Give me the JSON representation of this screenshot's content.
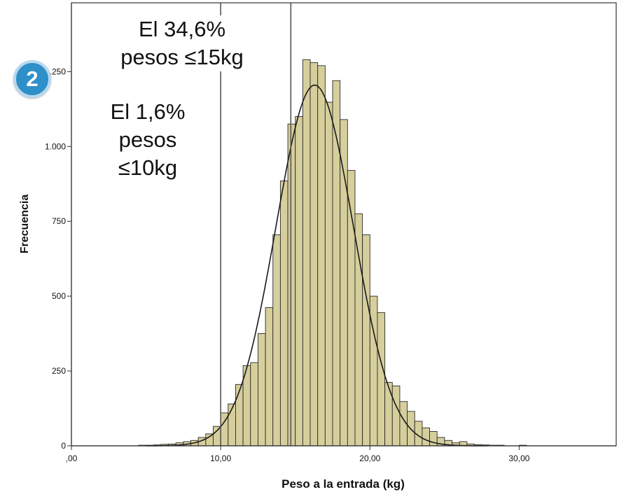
{
  "chart_data": {
    "type": "bar",
    "title": "",
    "xlabel": "Peso a la entrada (kg)",
    "ylabel": "Frecuencia",
    "xlim": [
      0,
      36.5
    ],
    "ylim": [
      0,
      1480
    ],
    "grid": false,
    "x_ticks": [
      0,
      10,
      20,
      30
    ],
    "x_tick_labels": [
      ",00",
      "10,00",
      "20,00",
      "30,00"
    ],
    "y_ticks": [
      0,
      250,
      500,
      750,
      1000,
      1250
    ],
    "y_tick_labels": [
      "0",
      "250",
      "500",
      "750",
      "1.000",
      "1.250"
    ],
    "bin_width": 0.5,
    "bins": [
      {
        "x0": 4.5,
        "value": 2
      },
      {
        "x0": 5.0,
        "value": 2
      },
      {
        "x0": 5.5,
        "value": 3
      },
      {
        "x0": 6.0,
        "value": 5
      },
      {
        "x0": 6.5,
        "value": 6
      },
      {
        "x0": 7.0,
        "value": 10
      },
      {
        "x0": 7.5,
        "value": 14
      },
      {
        "x0": 8.0,
        "value": 18
      },
      {
        "x0": 8.5,
        "value": 28
      },
      {
        "x0": 9.0,
        "value": 40
      },
      {
        "x0": 9.5,
        "value": 65
      },
      {
        "x0": 10.0,
        "value": 110
      },
      {
        "x0": 10.5,
        "value": 140
      },
      {
        "x0": 11.0,
        "value": 205
      },
      {
        "x0": 11.5,
        "value": 268
      },
      {
        "x0": 12.0,
        "value": 278
      },
      {
        "x0": 12.5,
        "value": 375
      },
      {
        "x0": 13.0,
        "value": 462
      },
      {
        "x0": 13.5,
        "value": 705
      },
      {
        "x0": 14.0,
        "value": 885
      },
      {
        "x0": 14.5,
        "value": 1075
      },
      {
        "x0": 15.0,
        "value": 1100
      },
      {
        "x0": 15.5,
        "value": 1290
      },
      {
        "x0": 16.0,
        "value": 1280
      },
      {
        "x0": 16.5,
        "value": 1270
      },
      {
        "x0": 17.0,
        "value": 1148
      },
      {
        "x0": 17.5,
        "value": 1220
      },
      {
        "x0": 18.0,
        "value": 1090
      },
      {
        "x0": 18.5,
        "value": 920
      },
      {
        "x0": 19.0,
        "value": 775
      },
      {
        "x0": 19.5,
        "value": 705
      },
      {
        "x0": 20.0,
        "value": 500
      },
      {
        "x0": 20.5,
        "value": 445
      },
      {
        "x0": 21.0,
        "value": 212
      },
      {
        "x0": 21.5,
        "value": 200
      },
      {
        "x0": 22.0,
        "value": 148
      },
      {
        "x0": 22.5,
        "value": 115
      },
      {
        "x0": 23.0,
        "value": 82
      },
      {
        "x0": 23.5,
        "value": 60
      },
      {
        "x0": 24.0,
        "value": 48
      },
      {
        "x0": 24.5,
        "value": 28
      },
      {
        "x0": 25.0,
        "value": 18
      },
      {
        "x0": 25.5,
        "value": 10
      },
      {
        "x0": 26.0,
        "value": 14
      },
      {
        "x0": 26.5,
        "value": 6
      },
      {
        "x0": 27.0,
        "value": 4
      },
      {
        "x0": 27.5,
        "value": 3
      },
      {
        "x0": 28.0,
        "value": 2
      },
      {
        "x0": 28.5,
        "value": 2
      },
      {
        "x0": 30.0,
        "value": 2
      }
    ],
    "normal_curve": {
      "mean": 16.3,
      "sd": 2.6,
      "peak": 1205
    },
    "reference_lines": [
      10.0,
      14.7
    ],
    "annotations": [
      {
        "lines": [
          "El 34,6%",
          "pesos ≤15kg"
        ]
      },
      {
        "lines": [
          "El 1,6%",
          "pesos",
          "≤10kg"
        ]
      }
    ],
    "badge": "2",
    "colors": {
      "bar_fill": "#d6cf9c",
      "bar_stroke": "#2b2b2b",
      "curve": "#1a1a1a",
      "ref_line": "#555555",
      "badge": "#2f8fc9"
    }
  }
}
